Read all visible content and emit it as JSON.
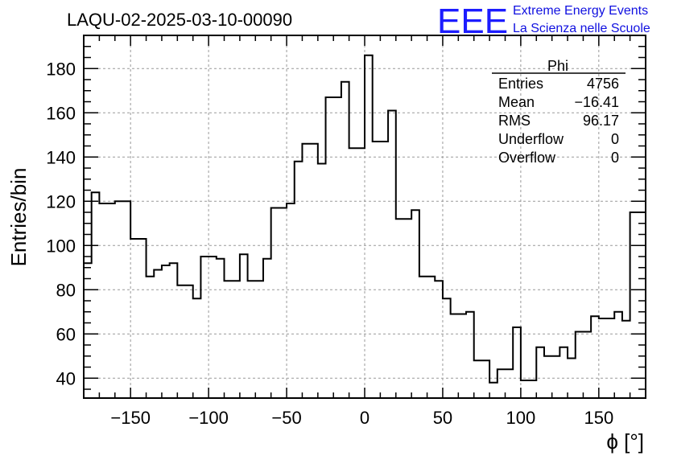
{
  "chart_data": {
    "type": "histogram",
    "title": "LAQU-02-2025-03-10-00090",
    "xlabel": "ϕ [°]",
    "ylabel": "Entries/bin",
    "xlim": [
      -180,
      180
    ],
    "ylim": [
      31,
      195
    ],
    "bin_width": 10,
    "x_ticks": [
      -150,
      -100,
      -50,
      0,
      50,
      100,
      150
    ],
    "y_ticks": [
      40,
      60,
      80,
      100,
      120,
      140,
      160,
      180
    ],
    "grid": true,
    "bins": [
      {
        "x": -180,
        "y": 92
      },
      {
        "x": -175,
        "y": 124
      },
      {
        "x": -170,
        "y": 119
      },
      {
        "x": -160,
        "y": 120
      },
      {
        "x": -150,
        "y": 103
      },
      {
        "x": -140,
        "y": 86
      },
      {
        "x": -135,
        "y": 89
      },
      {
        "x": -130,
        "y": 91
      },
      {
        "x": -125,
        "y": 92
      },
      {
        "x": -120,
        "y": 82
      },
      {
        "x": -110,
        "y": 76
      },
      {
        "x": -105,
        "y": 95
      },
      {
        "x": -95,
        "y": 94
      },
      {
        "x": -90,
        "y": 84
      },
      {
        "x": -80,
        "y": 96
      },
      {
        "x": -75,
        "y": 84
      },
      {
        "x": -65,
        "y": 94
      },
      {
        "x": -60,
        "y": 117
      },
      {
        "x": -50,
        "y": 119
      },
      {
        "x": -45,
        "y": 138
      },
      {
        "x": -40,
        "y": 146
      },
      {
        "x": -30,
        "y": 137
      },
      {
        "x": -25,
        "y": 167
      },
      {
        "x": -15,
        "y": 174
      },
      {
        "x": -10,
        "y": 144
      },
      {
        "x": 0,
        "y": 186
      },
      {
        "x": 5,
        "y": 147
      },
      {
        "x": 15,
        "y": 161
      },
      {
        "x": 20,
        "y": 112
      },
      {
        "x": 30,
        "y": 116
      },
      {
        "x": 35,
        "y": 86
      },
      {
        "x": 45,
        "y": 84
      },
      {
        "x": 50,
        "y": 76
      },
      {
        "x": 55,
        "y": 69
      },
      {
        "x": 65,
        "y": 70
      },
      {
        "x": 70,
        "y": 48
      },
      {
        "x": 80,
        "y": 38
      },
      {
        "x": 85,
        "y": 44
      },
      {
        "x": 95,
        "y": 63
      },
      {
        "x": 100,
        "y": 39
      },
      {
        "x": 110,
        "y": 54
      },
      {
        "x": 115,
        "y": 50
      },
      {
        "x": 125,
        "y": 54
      },
      {
        "x": 130,
        "y": 49
      },
      {
        "x": 135,
        "y": 61
      },
      {
        "x": 145,
        "y": 68
      },
      {
        "x": 150,
        "y": 67
      },
      {
        "x": 160,
        "y": 70
      },
      {
        "x": 165,
        "y": 66
      },
      {
        "x": 170,
        "y": 115
      }
    ],
    "stats": {
      "title": "Phi",
      "rows": [
        {
          "label": "Entries",
          "value": "4756"
        },
        {
          "label": "Mean",
          "value": "−16.41"
        },
        {
          "label": "RMS",
          "value": "96.17"
        },
        {
          "label": "Underflow",
          "value": "0"
        },
        {
          "label": "Overflow",
          "value": "0"
        }
      ]
    },
    "line_color": "#000000"
  },
  "logo": {
    "mark": "EEE",
    "line1": "Extreme Energy Events",
    "line2": "La Scienza nelle Scuole",
    "color": "#1c1cff"
  }
}
